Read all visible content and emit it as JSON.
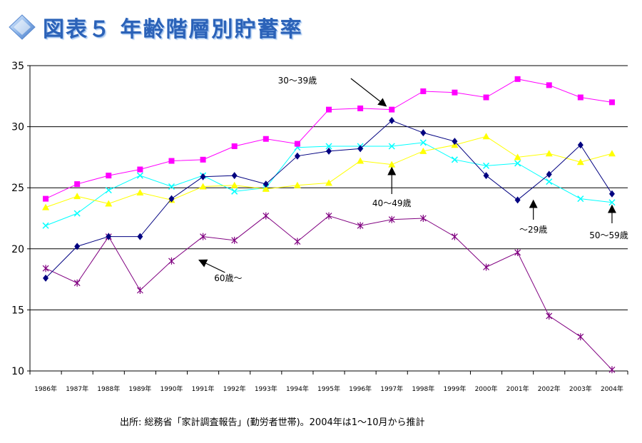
{
  "header": {
    "title": "図表５ 年齢階層別貯蓄率"
  },
  "source_note": "出所: 総務省「家計調査報告」(勤労者世帯)。2004年は1～10月から推計",
  "chart_data": {
    "type": "line",
    "title": "図表５ 年齢階層別貯蓄率",
    "xlabel": "",
    "ylabel": "",
    "ylim": [
      10,
      35
    ],
    "yticks": [
      10,
      15,
      20,
      25,
      30,
      35
    ],
    "grid": true,
    "categories": [
      "1986年",
      "1987年",
      "1988年",
      "1989年",
      "1990年",
      "1991年",
      "1992年",
      "1993年",
      "1994年",
      "1995年",
      "1996年",
      "1997年",
      "1998年",
      "1999年",
      "2000年",
      "2001年",
      "2002年",
      "2003年",
      "2004年"
    ],
    "series": [
      {
        "name": "30～39歳",
        "color": "#ff00ff",
        "marker": "square",
        "values": [
          24.1,
          25.3,
          26.0,
          26.5,
          27.2,
          27.3,
          28.4,
          29.0,
          28.6,
          31.4,
          31.5,
          31.4,
          32.9,
          32.8,
          32.4,
          33.9,
          33.4,
          32.4,
          32.0
        ]
      },
      {
        "name": "～29歳",
        "color": "#000080",
        "marker": "diamond",
        "values": [
          17.6,
          20.2,
          21.0,
          21.0,
          24.1,
          25.9,
          26.0,
          25.3,
          27.6,
          28.0,
          28.2,
          30.5,
          29.5,
          28.8,
          26.0,
          24.0,
          26.1,
          28.5,
          24.5
        ]
      },
      {
        "name": "40～49歳",
        "color": "#ffff00",
        "marker": "triangle",
        "values": [
          23.4,
          24.3,
          23.7,
          24.6,
          24.0,
          25.1,
          25.2,
          24.9,
          25.2,
          25.4,
          27.2,
          26.9,
          28.0,
          28.5,
          29.2,
          27.5,
          27.8,
          27.1,
          27.8
        ]
      },
      {
        "name": "50～59歳",
        "color": "#00ffff",
        "marker": "x",
        "values": [
          21.9,
          22.9,
          24.8,
          26.0,
          25.1,
          26.0,
          24.7,
          25.0,
          28.3,
          28.4,
          28.4,
          28.4,
          28.7,
          27.3,
          26.8,
          27.0,
          25.5,
          24.1,
          23.8
        ]
      },
      {
        "name": "60歳～",
        "color": "#800080",
        "marker": "star",
        "values": [
          18.4,
          17.2,
          21.0,
          16.6,
          19.0,
          21.0,
          20.7,
          22.7,
          20.6,
          22.7,
          21.9,
          22.4,
          22.5,
          21.0,
          18.5,
          19.7,
          14.5,
          12.8,
          10.1
        ]
      }
    ],
    "annotations": [
      {
        "text": "30～39歳",
        "series": "30～39歳",
        "arrow": "down-right"
      },
      {
        "text": "40～49歳",
        "series": "40～49歳",
        "arrow": "up"
      },
      {
        "text": "～29歳",
        "series": "～29歳",
        "arrow": "up"
      },
      {
        "text": "50～59歳",
        "series": "50～59歳",
        "arrow": "up"
      },
      {
        "text": "60歳～",
        "series": "60歳～",
        "arrow": "up-left"
      }
    ]
  }
}
